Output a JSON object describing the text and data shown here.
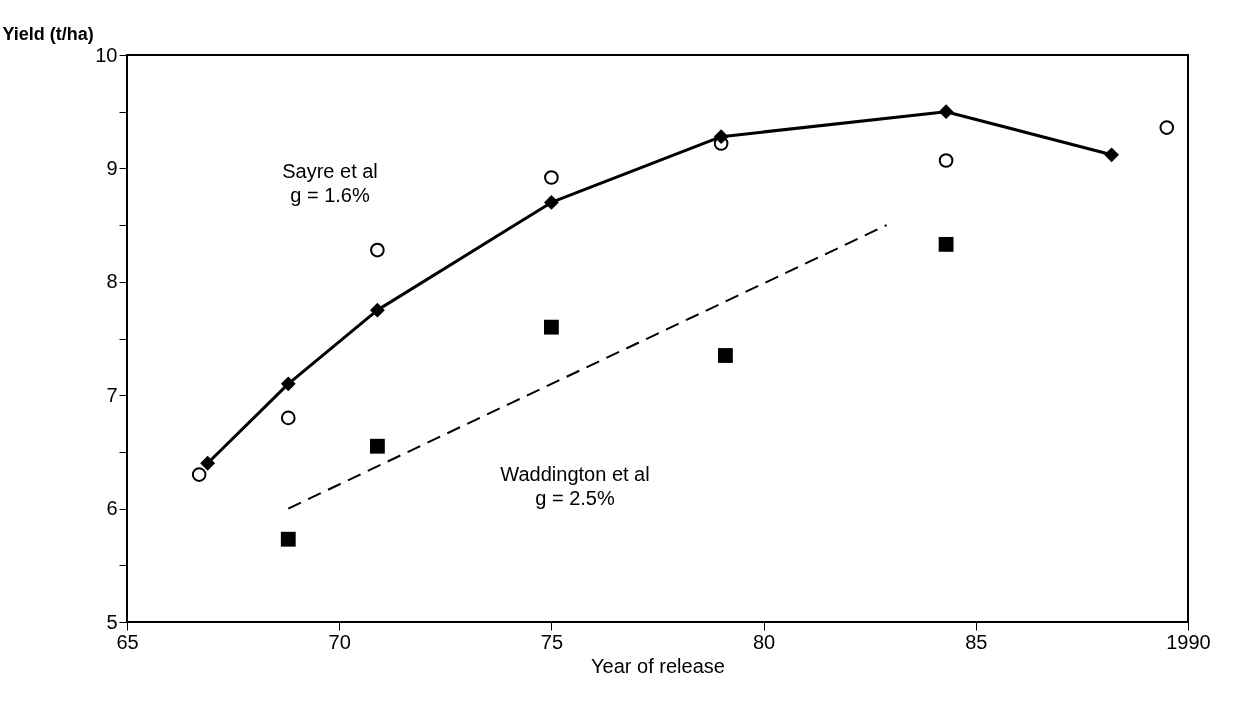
{
  "chart_data": {
    "type": "line",
    "xlabel": "Year of release",
    "ylabel": "Yield (t/ha)",
    "xlim": [
      1965,
      1990
    ],
    "xticks": [
      {
        "value": 1965,
        "label": "65"
      },
      {
        "value": 1970,
        "label": "70"
      },
      {
        "value": 1975,
        "label": "75"
      },
      {
        "value": 1980,
        "label": "80"
      },
      {
        "value": 1985,
        "label": "85"
      },
      1990
    ],
    "ylim": [
      5,
      10
    ],
    "yticks": [
      5,
      {
        "value": 5.5,
        "label": null
      },
      6,
      {
        "value": 6.5,
        "label": null
      },
      7,
      {
        "value": 7.5,
        "label": null
      },
      8,
      {
        "value": 8.5,
        "label": null
      },
      9,
      {
        "value": 9.5,
        "label": null
      },
      10
    ],
    "grid": false,
    "annotations": [
      "Sayre et al\ng = 1.6%",
      "Waddington et al\ng = 2.5%"
    ],
    "series": [
      {
        "marker": "diamond",
        "line_style": "solid",
        "color": "#000000",
        "x": [
          1966.9,
          1968.8,
          1970.9,
          1975.0,
          1979.0,
          1984.3,
          1988.2
        ],
        "values": [
          6.4,
          7.1,
          7.75,
          8.7,
          9.28,
          9.5,
          9.12
        ]
      },
      {
        "type": "scatter",
        "marker": "circle",
        "color": "#000000",
        "x": [
          1966.7,
          1968.8,
          1970.9,
          1975.0,
          1979.0,
          1984.3,
          1989.5
        ],
        "values": [
          6.3,
          6.8,
          8.28,
          8.92,
          9.22,
          9.07,
          9.36
        ]
      },
      {
        "type": "scatter",
        "marker": "square",
        "color": "#000000",
        "x": [
          1968.8,
          1970.9,
          1975.0,
          1979.1,
          1984.3
        ],
        "values": [
          5.73,
          6.55,
          7.6,
          7.35,
          8.33
        ]
      },
      {
        "marker": "none",
        "line_style": "dashed",
        "color": "#000000",
        "x": [
          1968.8,
          1982.9
        ],
        "values": [
          6.0,
          8.5
        ]
      }
    ]
  }
}
